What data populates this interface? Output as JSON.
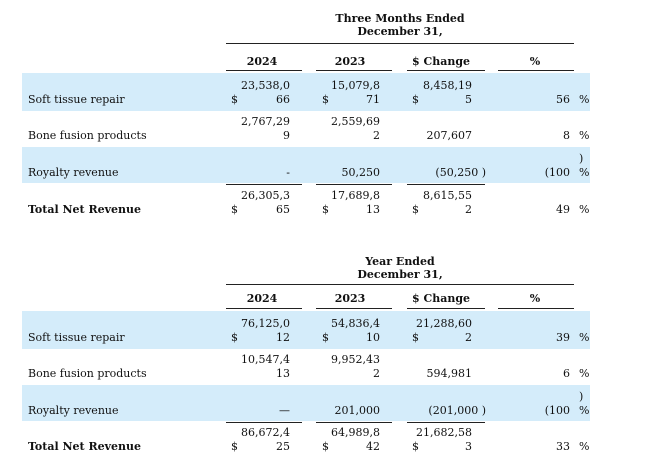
{
  "three_months": {
    "heading_line1": "Three Months Ended",
    "heading_line2": "December 31,",
    "columns": [
      "2024",
      "2023",
      "$ Change",
      "%"
    ],
    "rows": [
      {
        "label": "Soft tissue repair",
        "c2024_line1": "23,538,0",
        "c2024_line2": "66",
        "c2023_line1": "15,079,8",
        "c2023_line2": "71",
        "chg_line1": "8,458,19",
        "chg_line2": "5",
        "pct": "56",
        "pct_sign": "%",
        "pct_paren": "",
        "dollar": "$"
      },
      {
        "label": "Bone fusion products",
        "c2024_line1": "2,767,29",
        "c2024_line2": "9",
        "c2023_line1": "2,559,69",
        "c2023_line2": "2",
        "chg_line1": "",
        "chg_line2": "207,607",
        "pct": "8",
        "pct_sign": "%",
        "pct_paren": "",
        "dollar": ""
      },
      {
        "label": "Royalty revenue",
        "c2024_line1": "",
        "c2024_line2": "-",
        "c2023_line1": "",
        "c2023_line2": "50,250",
        "chg_line1": "",
        "chg_line2": "(50,250  )",
        "pct": "(100",
        "pct_sign": "%",
        "pct_paren": ")",
        "dollar": ""
      },
      {
        "label": "Total Net Revenue",
        "c2024_line1": "26,305,3",
        "c2024_line2": "65",
        "c2023_line1": "17,689,8",
        "c2023_line2": "13",
        "chg_line1": "8,615,55",
        "chg_line2": "2",
        "pct": "49",
        "pct_sign": "%",
        "pct_paren": "",
        "dollar": "$"
      }
    ]
  },
  "year": {
    "heading_line1": "Year Ended",
    "heading_line2": "December 31,",
    "columns": [
      "2024",
      "2023",
      "$ Change",
      "%"
    ],
    "rows": [
      {
        "label": "Soft tissue repair",
        "c2024_line1": "76,125,0",
        "c2024_line2": "12",
        "c2023_line1": "54,836,4",
        "c2023_line2": "10",
        "chg_line1": "21,288,60",
        "chg_line2": "2",
        "pct": "39",
        "pct_sign": "%",
        "pct_paren": "",
        "dollar": "$"
      },
      {
        "label": "Bone fusion products",
        "c2024_line1": "10,547,4",
        "c2024_line2": "13",
        "c2023_line1": "9,952,43",
        "c2023_line2": "2",
        "chg_line1": "",
        "chg_line2": "594,981",
        "pct": "6",
        "pct_sign": "%",
        "pct_paren": "",
        "dollar": ""
      },
      {
        "label": "Royalty revenue",
        "c2024_line1": "",
        "c2024_line2": "—",
        "c2023_line1": "",
        "c2023_line2": "201,000",
        "chg_line1": "",
        "chg_line2": "(201,000  )",
        "pct": "(100",
        "pct_sign": "%",
        "pct_paren": ")",
        "dollar": ""
      },
      {
        "label": "Total Net Revenue",
        "c2024_line1": "86,672,4",
        "c2024_line2": "25",
        "c2023_line1": "64,989,8",
        "c2023_line2": "42",
        "chg_line1": "21,682,58",
        "chg_line2": "3",
        "pct": "33",
        "pct_sign": "%",
        "pct_paren": "",
        "dollar": "$"
      }
    ]
  }
}
